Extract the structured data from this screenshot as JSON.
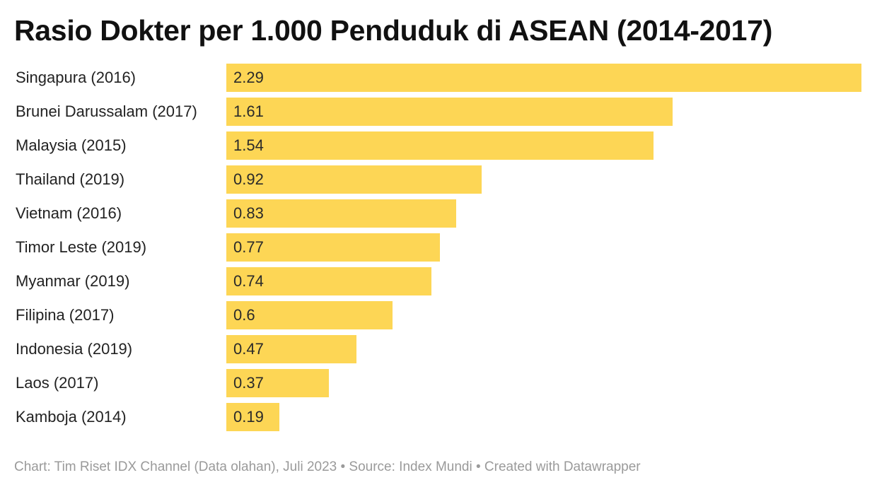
{
  "title": "Rasio Dokter per 1.000 Penduduk di ASEAN (2014-2017)",
  "footer": "Chart: Tim Riset IDX Channel (Data olahan), Juli 2023 • Source: Index Mundi • Created with Datawrapper",
  "colors": {
    "bar": "#fdd655",
    "background": "#ffffff"
  },
  "chart_data": {
    "type": "bar",
    "orientation": "horizontal",
    "title": "Rasio Dokter per 1.000 Penduduk di ASEAN (2014-2017)",
    "categories": [
      "Singapura (2016)",
      "Brunei Darussalam (2017)",
      "Malaysia (2015)",
      "Thailand (2019)",
      "Vietnam (2016)",
      "Timor Leste (2019)",
      "Myanmar (2019)",
      "Filipina (2017)",
      "Indonesia (2019)",
      "Laos (2017)",
      "Kamboja (2014)"
    ],
    "values": [
      2.29,
      1.61,
      1.54,
      0.92,
      0.83,
      0.77,
      0.74,
      0.6,
      0.47,
      0.37,
      0.19
    ],
    "value_labels": [
      "2.29",
      "1.61",
      "1.54",
      "0.92",
      "0.83",
      "0.77",
      "0.74",
      "0.6",
      "0.47",
      "0.37",
      "0.19"
    ],
    "xlim": [
      0,
      2.29
    ],
    "grid": false,
    "legend": "none",
    "xlabel": "",
    "ylabel": ""
  }
}
